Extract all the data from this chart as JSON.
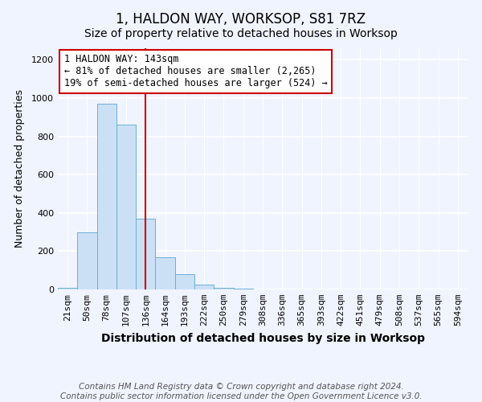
{
  "title": "1, HALDON WAY, WORKSOP, S81 7RZ",
  "subtitle": "Size of property relative to detached houses in Worksop",
  "xlabel": "Distribution of detached houses by size in Worksop",
  "ylabel": "Number of detached properties",
  "bins": [
    "21sqm",
    "50sqm",
    "78sqm",
    "107sqm",
    "136sqm",
    "164sqm",
    "193sqm",
    "222sqm",
    "250sqm",
    "279sqm",
    "308sqm",
    "336sqm",
    "365sqm",
    "393sqm",
    "422sqm",
    "451sqm",
    "479sqm",
    "508sqm",
    "537sqm",
    "565sqm",
    "594sqm"
  ],
  "values": [
    10,
    300,
    970,
    860,
    370,
    170,
    80,
    25,
    10,
    5,
    0,
    0,
    0,
    0,
    0,
    0,
    0,
    0,
    0,
    0,
    0
  ],
  "bar_color": "#cce0f5",
  "bar_edge_color": "#6aafd6",
  "vline_x": 4.0,
  "vline_color": "#cc0000",
  "annotation_text": "1 HALDON WAY: 143sqm\n← 81% of detached houses are smaller (2,265)\n19% of semi-detached houses are larger (524) →",
  "annotation_box_facecolor": "#ffffff",
  "annotation_box_edgecolor": "#cc0000",
  "ylim": [
    0,
    1260
  ],
  "yticks": [
    0,
    200,
    400,
    600,
    800,
    1000,
    1200
  ],
  "footnote": "Contains HM Land Registry data © Crown copyright and database right 2024.\nContains public sector information licensed under the Open Government Licence v3.0.",
  "title_fontsize": 12,
  "subtitle_fontsize": 10,
  "xlabel_fontsize": 10,
  "ylabel_fontsize": 9,
  "tick_fontsize": 8,
  "annotation_fontsize": 8.5,
  "footnote_fontsize": 7.5,
  "bg_color": "#f0f4ff"
}
